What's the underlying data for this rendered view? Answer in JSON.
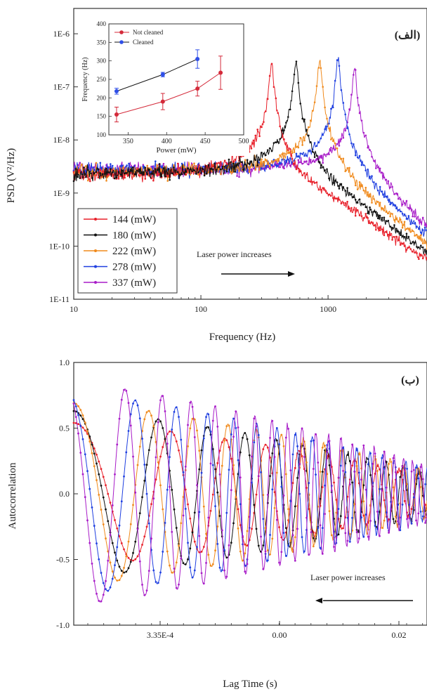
{
  "chart_data": [
    {
      "type": "line",
      "panel_label": "(الف)",
      "xlabel": "Frequency (Hz)",
      "ylabel": "PSD (V²/Hz)",
      "x_scale": "log",
      "y_scale": "log",
      "xlim": [
        10,
        6000
      ],
      "ylim": [
        1e-11,
        3e-06
      ],
      "x_ticks": [
        {
          "value": 10,
          "label": "10"
        },
        {
          "value": 100,
          "label": "100"
        },
        {
          "value": 1000,
          "label": "1000"
        }
      ],
      "y_ticks": [
        {
          "value": 1e-11,
          "label": "1E-11"
        },
        {
          "value": 1e-10,
          "label": "1E-10"
        },
        {
          "value": 1e-09,
          "label": "1E-9"
        },
        {
          "value": 1e-08,
          "label": "1E-8"
        },
        {
          "value": 1e-07,
          "label": "1E-7"
        },
        {
          "value": 1e-06,
          "label": "1E-6"
        }
      ],
      "legend_position": "bottom-left",
      "annotation": "Laser power increases",
      "series": [
        {
          "name": "144 (mW)",
          "color": "#e8202a",
          "peak_hz": 360,
          "peak_psd": 2.8e-07
        },
        {
          "name": "180 (mW)",
          "color": "#111111",
          "peak_hz": 560,
          "peak_psd": 3e-07
        },
        {
          "name": "222 (mW)",
          "color": "#f08a1c",
          "peak_hz": 860,
          "peak_psd": 3.1e-07
        },
        {
          "name": "278 (mW)",
          "color": "#1f3fe0",
          "peak_hz": 1200,
          "peak_psd": 3.3e-07
        },
        {
          "name": "337 (mW)",
          "color": "#a81cc8",
          "peak_hz": 1620,
          "peak_psd": 2e-07
        }
      ],
      "inset": {
        "type": "scatter",
        "xlabel": "Power (mW)",
        "ylabel": "Frequency (Hz)",
        "xlim": [
          325,
          500
        ],
        "ylim": [
          100,
          400
        ],
        "x_ticks": [
          350,
          400,
          450,
          500
        ],
        "y_ticks": [
          100,
          150,
          200,
          250,
          300,
          350,
          400
        ],
        "series": [
          {
            "name": "Not cleaned",
            "color": "#d42a3a",
            "x": [
              335,
              395,
              440,
              470
            ],
            "y": [
              155,
              190,
              225,
              268
            ],
            "err": [
              20,
              22,
              20,
              45
            ]
          },
          {
            "name": "Cleaned",
            "color": "#2f4fe8",
            "line_color": "#111111",
            "x": [
              335,
              395,
              440
            ],
            "y": [
              218,
              263,
              305
            ],
            "err": [
              8,
              6,
              25
            ]
          }
        ]
      }
    },
    {
      "type": "line",
      "panel_label": "(ب)",
      "xlabel": "Lag Time (s)",
      "ylabel": "Autocorrelation",
      "ylim": [
        -1.0,
        1.0
      ],
      "x_ticks": [
        {
          "label": "3.35E-4"
        },
        {
          "label": "0.00"
        },
        {
          "label": "0.02"
        }
      ],
      "y_ticks": [
        {
          "value": -1.0,
          "label": "-1.0"
        },
        {
          "value": -0.5,
          "label": "-0.5"
        },
        {
          "value": 0.0,
          "label": "0.0"
        },
        {
          "value": 0.5,
          "label": "0.5"
        },
        {
          "value": 1.0,
          "label": "1.0"
        }
      ],
      "annotation": "Laser power increases",
      "series": [
        {
          "name": "144 (mW)",
          "color": "#e8202a",
          "first_min": -0.5,
          "start": 0.63
        },
        {
          "name": "180 (mW)",
          "color": "#111111",
          "first_min": -0.59,
          "start": 0.7
        },
        {
          "name": "222 (mW)",
          "color": "#f08a1c",
          "first_min": -0.65,
          "start": 0.7
        },
        {
          "name": "278 (mW)",
          "color": "#1f3fe0",
          "first_min": -0.72,
          "start": 0.66
        },
        {
          "name": "337 (mW)",
          "color": "#a81cc8",
          "first_min": -0.8,
          "start": 0.6
        }
      ]
    }
  ]
}
